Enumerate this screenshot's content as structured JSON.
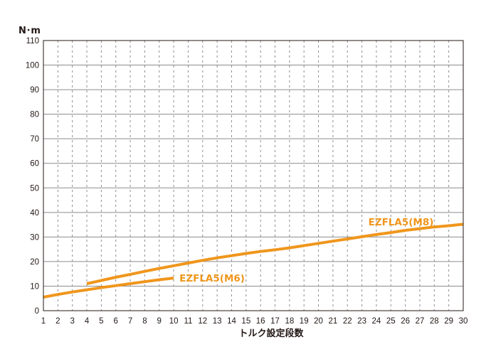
{
  "chart_data": {
    "type": "line",
    "title": "",
    "xlabel": "トルク設定段数",
    "ylabel": "N･m",
    "xlim": [
      1,
      30
    ],
    "ylim": [
      0,
      110
    ],
    "x_ticks": [
      1,
      2,
      3,
      4,
      5,
      6,
      7,
      8,
      9,
      10,
      11,
      12,
      13,
      14,
      15,
      16,
      17,
      18,
      19,
      20,
      21,
      22,
      23,
      24,
      25,
      26,
      27,
      28,
      29,
      30
    ],
    "y_ticks": [
      0,
      10,
      20,
      30,
      40,
      50,
      60,
      70,
      80,
      90,
      100,
      110
    ],
    "x_tick_labels": [
      "1",
      "2",
      "3",
      "4",
      "5",
      "6",
      "7",
      "8",
      "9",
      "10",
      "11",
      "12",
      "13",
      "14",
      "15",
      "16",
      "17",
      "18",
      "19",
      "20",
      "21",
      "22",
      "23",
      "24",
      "25",
      "26",
      "27",
      "28",
      "29",
      "30"
    ],
    "y_tick_labels": [
      "0",
      "10",
      "20",
      "30",
      "40",
      "50",
      "60",
      "70",
      "80",
      "90",
      "100",
      "110"
    ],
    "grid": {
      "horizontal": "solid",
      "vertical": "dotted"
    },
    "line_color": "#f0961c",
    "series": [
      {
        "name": "EZFLA5(M6)",
        "x": [
          1,
          2,
          3,
          4,
          5,
          6,
          7,
          8,
          9,
          10
        ],
        "y": [
          5.5,
          6.6,
          7.6,
          8.5,
          9.4,
          10.2,
          11.0,
          11.8,
          12.6,
          13.3
        ]
      },
      {
        "name": "EZFLA5(M8)",
        "x": [
          4,
          5,
          6,
          7,
          8,
          9,
          10,
          11,
          12,
          13,
          14,
          15,
          16,
          17,
          18,
          19,
          20,
          21,
          22,
          23,
          24,
          25,
          26,
          27,
          28,
          29,
          30
        ],
        "y": [
          11.0,
          12.3,
          13.6,
          14.8,
          16.0,
          17.2,
          18.3,
          19.4,
          20.5,
          21.5,
          22.4,
          23.3,
          24.1,
          24.8,
          25.6,
          26.5,
          27.4,
          28.3,
          29.2,
          30.1,
          31.0,
          31.8,
          32.7,
          33.4,
          34.1,
          34.6,
          35.2
        ]
      }
    ],
    "annotations": [
      {
        "text": "EZFLA5(M6)",
        "series": "EZFLA5(M6)",
        "position": "right of line end"
      },
      {
        "text": "EZFLA5(M8)",
        "series": "EZFLA5(M8)",
        "position": "above line near right end"
      }
    ]
  }
}
